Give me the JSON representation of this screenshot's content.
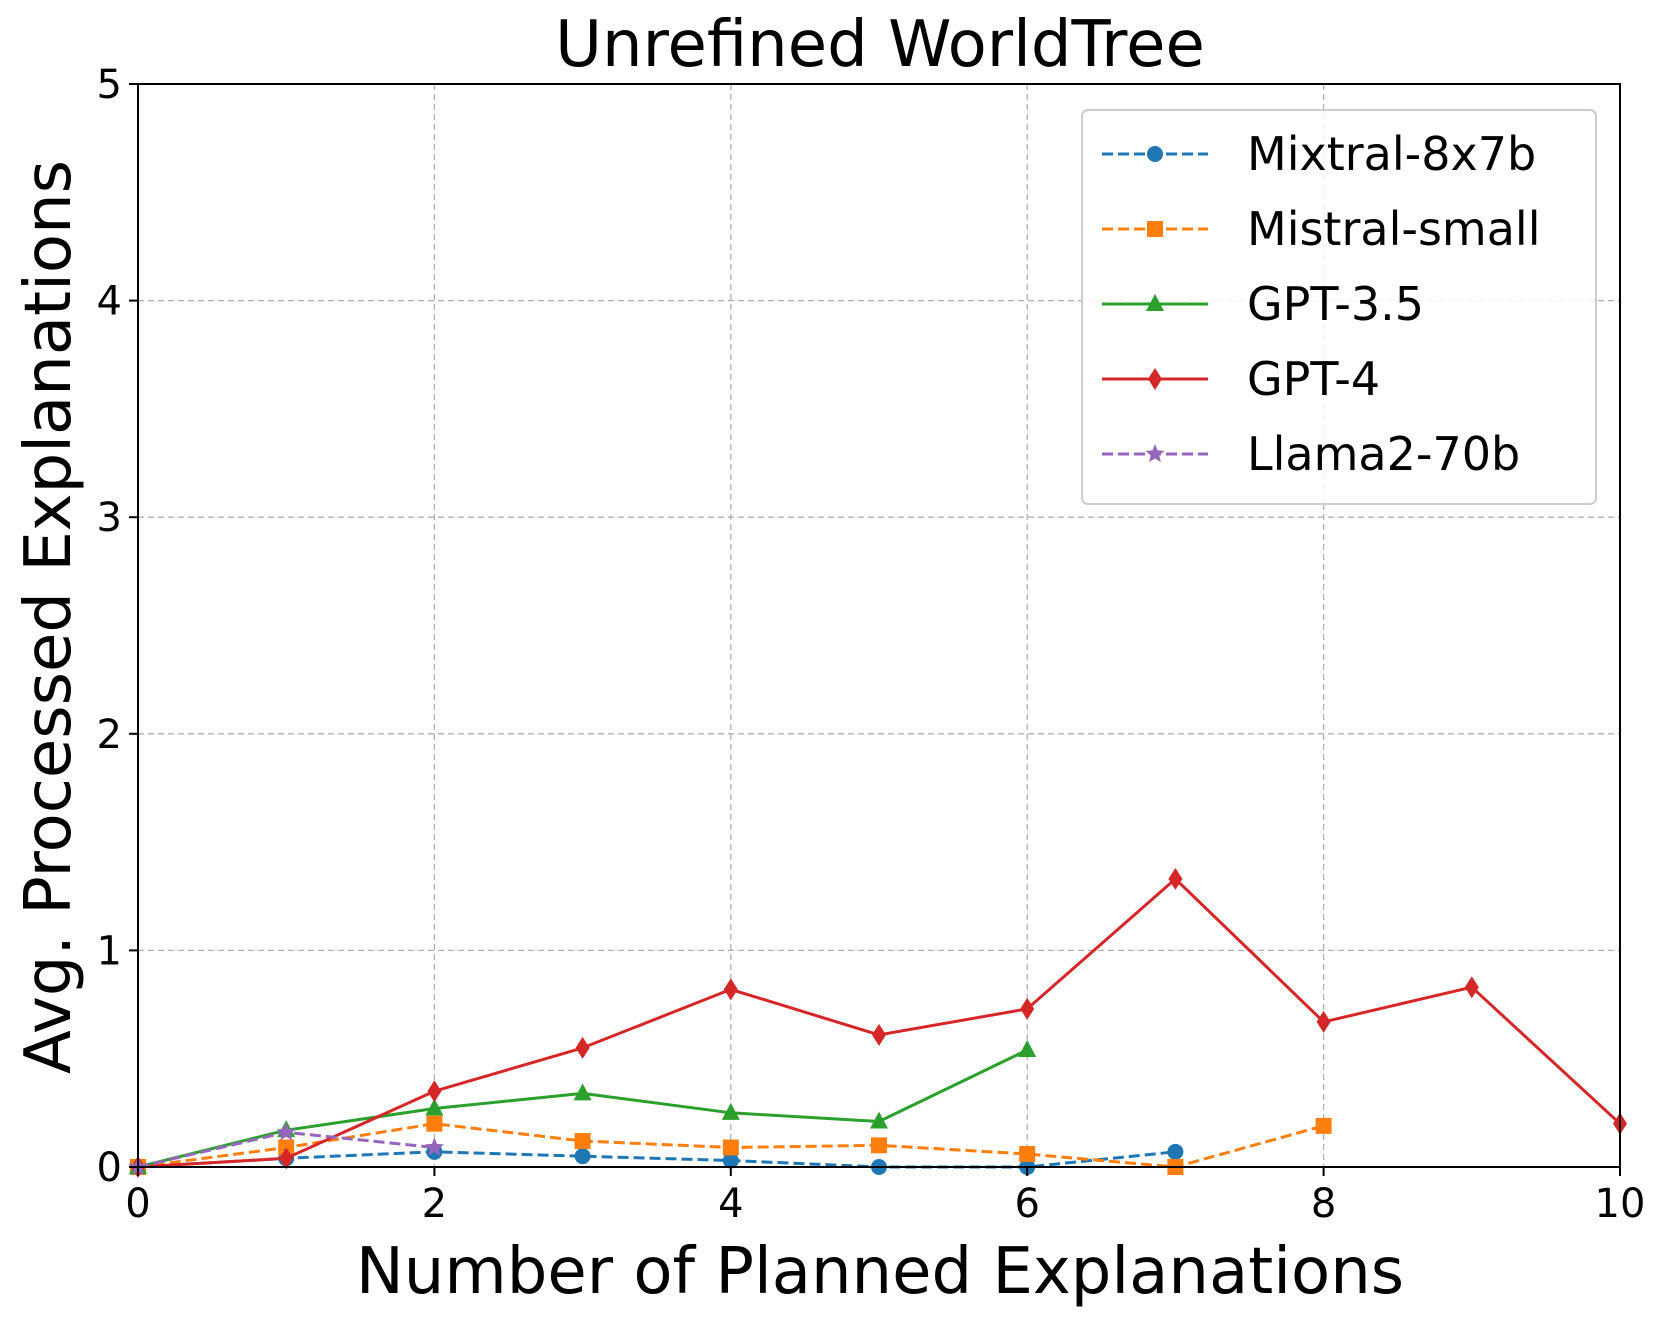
{
  "chart_data": {
    "type": "line",
    "title": "Unrefined WorldTree",
    "xlabel": "Number of Planned Explanations",
    "ylabel": "Avg. Processed Explanations",
    "xlim": [
      0,
      10
    ],
    "ylim": [
      0,
      5
    ],
    "xticks": [
      "0",
      "2",
      "4",
      "6",
      "8",
      "10"
    ],
    "yticks": [
      "0",
      "1",
      "2",
      "3",
      "4",
      "5"
    ],
    "grid": true,
    "legend_position": "top-right",
    "series": [
      {
        "name": "Mixtral-8x7b",
        "color": "#1f77b4",
        "dash": "dashed",
        "marker": "circle",
        "x": [
          0,
          1,
          2,
          3,
          4,
          5,
          6,
          7
        ],
        "y": [
          0.0,
          0.04,
          0.07,
          0.05,
          0.03,
          0.0,
          0.0,
          0.07
        ]
      },
      {
        "name": "Mistral-small",
        "color": "#ff7f0e",
        "dash": "dashed",
        "marker": "square",
        "x": [
          0,
          1,
          2,
          3,
          4,
          5,
          6,
          7,
          8
        ],
        "y": [
          0.0,
          0.09,
          0.2,
          0.12,
          0.09,
          0.1,
          0.06,
          0.0,
          0.19
        ]
      },
      {
        "name": "GPT-3.5",
        "color": "#2ca02c",
        "dash": "solid",
        "marker": "triangle",
        "x": [
          0,
          1,
          2,
          3,
          4,
          5,
          6
        ],
        "y": [
          0.0,
          0.17,
          0.27,
          0.34,
          0.25,
          0.21,
          0.54
        ]
      },
      {
        "name": "GPT-4",
        "color": "#d62728",
        "dash": "solid",
        "marker": "diamond",
        "x": [
          0,
          1,
          2,
          3,
          4,
          5,
          6,
          7,
          8,
          9,
          10
        ],
        "y": [
          0.0,
          0.04,
          0.35,
          0.55,
          0.82,
          0.61,
          0.73,
          1.33,
          0.67,
          0.83,
          0.2
        ]
      },
      {
        "name": "Llama2-70b",
        "color": "#9467bd",
        "dash": "dashed",
        "marker": "star",
        "x": [
          0,
          1,
          2
        ],
        "y": [
          0.0,
          0.16,
          0.09
        ]
      }
    ]
  }
}
